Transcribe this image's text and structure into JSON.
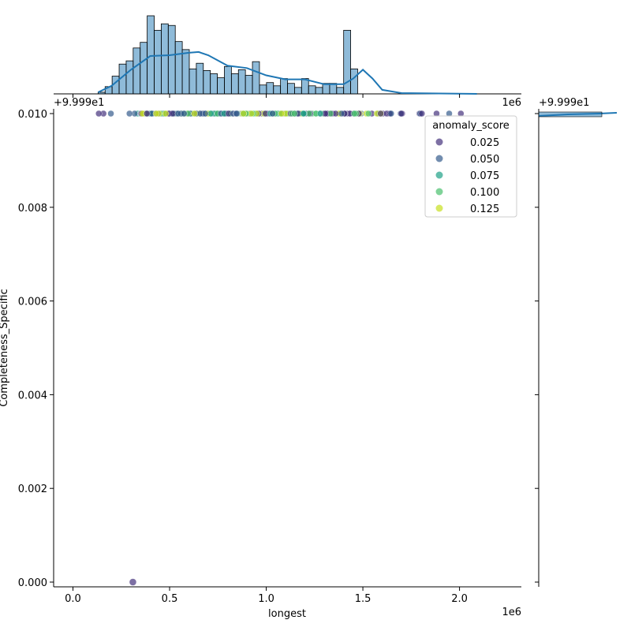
{
  "chart_data": {
    "type": "scatter",
    "subtype": "jointplot",
    "xlabel": "longest",
    "ylabel": "Completeness_Specific",
    "x_scale_label": "1e6",
    "y_offset_label": "+9.999e1",
    "xlim": [
      -0.1,
      2.32
    ],
    "ylim": [
      -0.0001,
      0.0101
    ],
    "x_ticks": [
      0.0,
      0.5,
      1.0,
      1.5,
      2.0
    ],
    "x_tick_labels": [
      "0.0",
      "0.5",
      "1.0",
      "1.5",
      "2.0"
    ],
    "y_ticks": [
      0.0,
      0.002,
      0.004,
      0.006,
      0.008,
      0.01
    ],
    "y_tick_labels": [
      "0.000",
      "0.002",
      "0.004",
      "0.006",
      "0.008",
      "0.010"
    ],
    "legend": {
      "title": "anomaly_score",
      "placement": "upper right",
      "entries": [
        {
          "label": "0.025",
          "color": "#46337e"
        },
        {
          "label": "0.050",
          "color": "#365c8d"
        },
        {
          "label": "0.075",
          "color": "#1fa187"
        },
        {
          "label": "0.100",
          "color": "#4ac16d"
        },
        {
          "label": "0.125",
          "color": "#c7e020"
        }
      ]
    },
    "scatter_points": [
      {
        "x": 0.31,
        "y": 0.0,
        "anomaly_score": 0.025
      }
    ],
    "dense_band": {
      "y": 0.01,
      "x_range": [
        0.13,
        2.09
      ],
      "note_colors": [
        "#46337e",
        "#365c8d",
        "#1fa187",
        "#4ac16d",
        "#c7e020"
      ]
    },
    "marginal_x_histogram": {
      "bin_start": 0.13,
      "bin_width": 0.0363,
      "counts": [
        2,
        9,
        22,
        37,
        41,
        57,
        64,
        97,
        79,
        87,
        85,
        65,
        55,
        31,
        38,
        29,
        25,
        20,
        34,
        25,
        30,
        23,
        40,
        11,
        14,
        10,
        19,
        13,
        8,
        19,
        10,
        8,
        13,
        13,
        8,
        79,
        31,
        0,
        0,
        0,
        0
      ]
    },
    "marginal_x_kde": {
      "x": [
        0.13,
        0.2,
        0.3,
        0.4,
        0.5,
        0.6,
        0.65,
        0.7,
        0.8,
        0.9,
        1.0,
        1.1,
        1.2,
        1.3,
        1.4,
        1.45,
        1.5,
        1.55,
        1.6,
        1.7,
        2.09
      ],
      "y": [
        2,
        10,
        30,
        47,
        48,
        51,
        52,
        48,
        35,
        32,
        23,
        18,
        18,
        12,
        12,
        19,
        30,
        19,
        5,
        1,
        0
      ]
    },
    "marginal_y_hist_note": "+9.999e1"
  }
}
